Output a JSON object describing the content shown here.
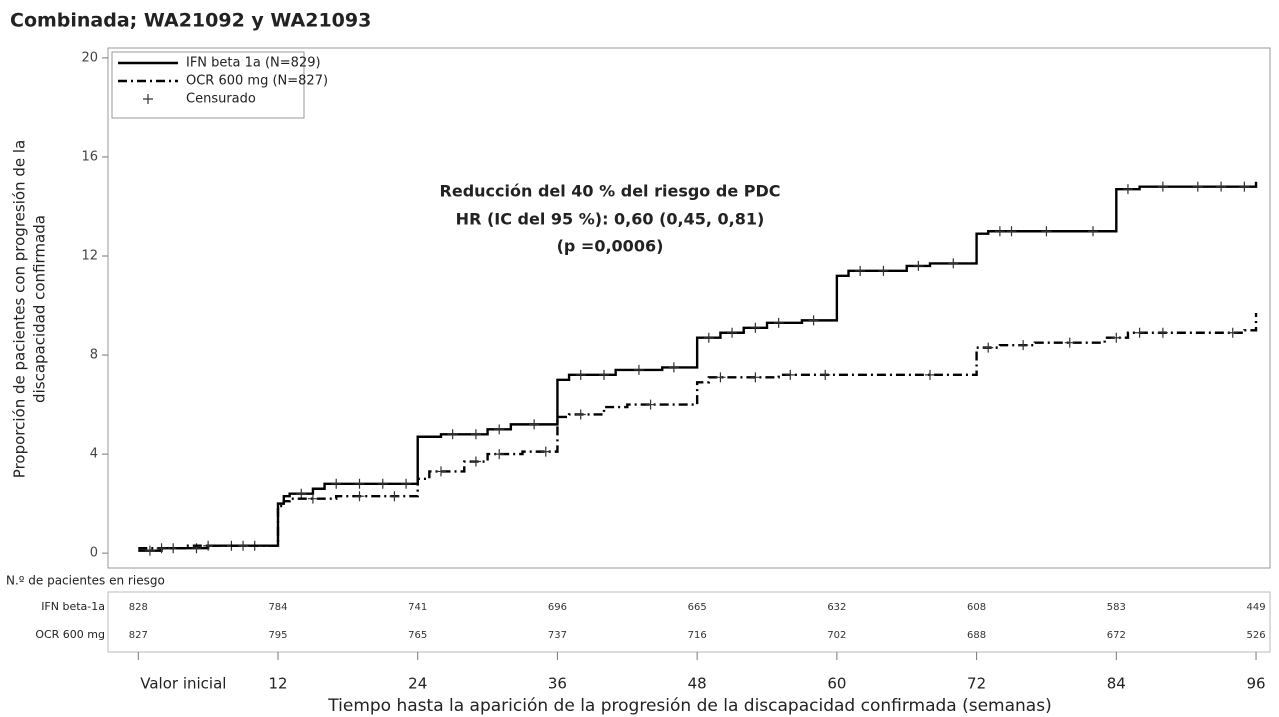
{
  "chart_data": {
    "type": "step",
    "title": "Combinada; WA21092 y WA21093",
    "y_label": [
      "Proporción de pacientes con progresión de la",
      "discapacidad confirmada"
    ],
    "x_label": "Tiempo hasta la aparición de la progresión de la discapacidad confirmada (semanas)",
    "annotation": [
      "Reducción del 40 % del riesgo de PDC",
      "HR (IC del 95 %): 0,60 (0,45, 0,81)",
      "(p =0,0006)"
    ],
    "xlim": [
      -2.6,
      97.2
    ],
    "ylim": [
      -0.6,
      20.4
    ],
    "xticks": [
      {
        "value": 0,
        "label": "Valor inicial"
      },
      12,
      24,
      36,
      48,
      60,
      72,
      84,
      96
    ],
    "yticks": [
      0,
      4,
      8,
      12,
      16,
      20
    ],
    "legend": "upper left",
    "censor_label": "Censurado",
    "series": [
      {
        "name": "IFN beta 1a (N=829)",
        "color": "#000000",
        "line_style": "solid",
        "x": [
          0,
          2,
          6,
          12,
          12.5,
          13,
          15,
          16,
          24,
          26,
          30,
          32,
          36,
          37,
          41,
          45,
          48,
          50,
          52,
          54,
          57,
          60,
          61,
          66,
          68,
          72,
          73,
          84,
          86,
          96
        ],
        "values": [
          0.1,
          0.2,
          0.3,
          2.0,
          2.3,
          2.4,
          2.6,
          2.8,
          4.7,
          4.8,
          5.0,
          5.2,
          7.0,
          7.2,
          7.4,
          7.5,
          8.7,
          8.9,
          9.1,
          9.3,
          9.4,
          11.2,
          11.4,
          11.6,
          11.7,
          12.9,
          13.0,
          14.7,
          14.8,
          15.0
        ],
        "censored": [
          1,
          3,
          5,
          8,
          10,
          14,
          17,
          19,
          21,
          23,
          27,
          29,
          31,
          34,
          38,
          40,
          43,
          46,
          49,
          51,
          53,
          55,
          58,
          62,
          64,
          67,
          70,
          74,
          75,
          78,
          82,
          85,
          88,
          91,
          93,
          95
        ]
      },
      {
        "name": "OCR 600 mg (N=827)",
        "color": "#000000",
        "line_style": "dashdot",
        "x": [
          0,
          4,
          12,
          12.5,
          13,
          17,
          24,
          25,
          28,
          30,
          33,
          36,
          37,
          40,
          42,
          48,
          49,
          55,
          72,
          74,
          77,
          83,
          85,
          95,
          96
        ],
        "values": [
          0.2,
          0.3,
          1.9,
          2.1,
          2.2,
          2.3,
          3.0,
          3.3,
          3.7,
          4.0,
          4.1,
          5.5,
          5.6,
          5.9,
          6.0,
          6.9,
          7.1,
          7.2,
          8.3,
          8.4,
          8.5,
          8.7,
          8.9,
          9.0,
          9.7
        ],
        "censored": [
          2,
          6,
          9,
          15,
          19,
          22,
          26,
          29,
          31,
          35,
          38,
          44,
          50,
          53,
          56,
          59,
          68,
          73,
          76,
          80,
          84,
          86,
          88,
          94
        ]
      }
    ],
    "risk_table": {
      "title": "N.º de pacientes en riesgo",
      "rows": [
        {
          "label": "IFN beta-1a",
          "values": [
            828,
            784,
            741,
            696,
            665,
            632,
            608,
            583,
            449
          ]
        },
        {
          "label": "OCR 600 mg",
          "values": [
            827,
            795,
            765,
            737,
            716,
            702,
            688,
            672,
            526
          ]
        }
      ]
    }
  }
}
